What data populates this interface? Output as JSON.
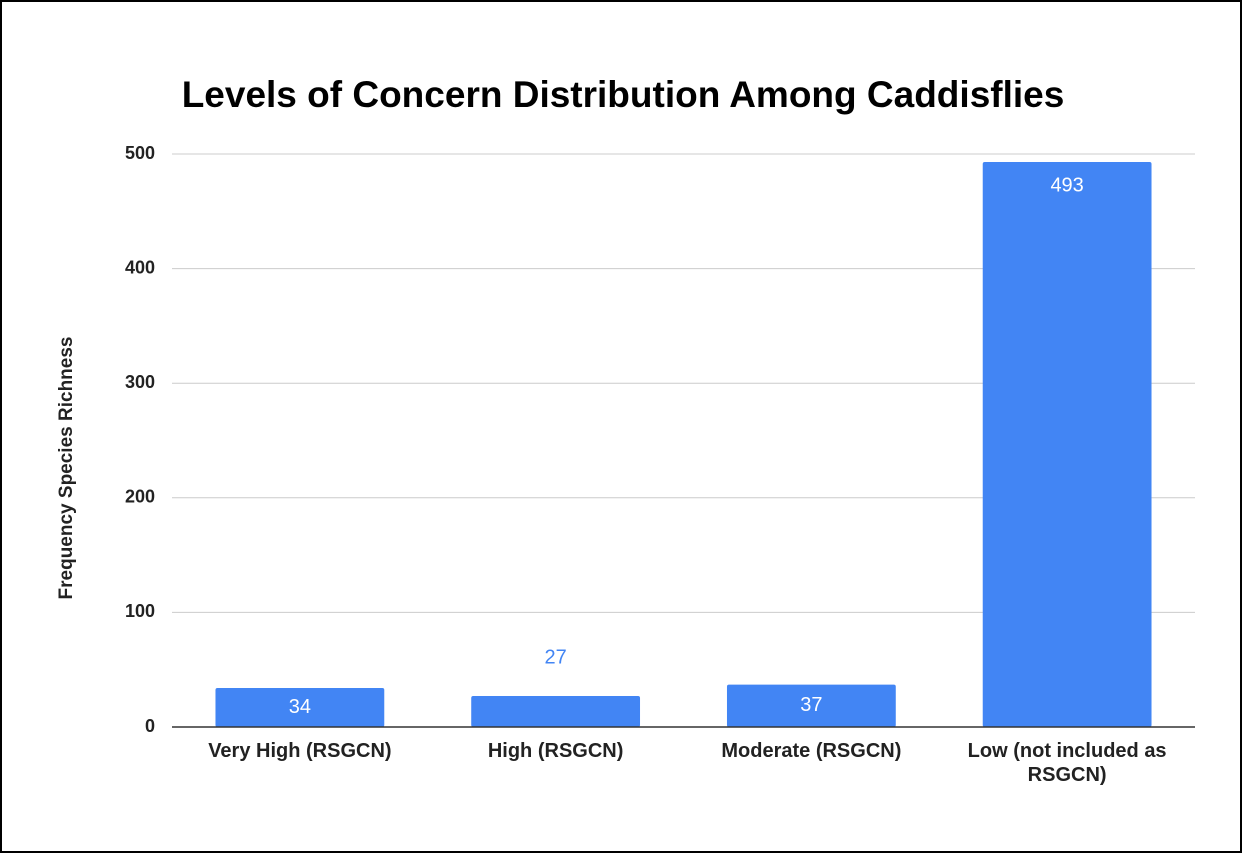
{
  "chart_data": {
    "type": "bar",
    "title": "Levels of Concern Distribution Among Caddisflies",
    "y_label": "Frequency Species Richness",
    "categories": [
      "Very High (RSGCN)",
      "High (RSGCN)",
      "Moderate (RSGCN)",
      "Low (not included as RSGCN)"
    ],
    "values": [
      34,
      27,
      37,
      493
    ],
    "color": "#4285f4",
    "ylim": [
      0,
      500
    ],
    "yticks": [
      0,
      100,
      200,
      300,
      400,
      500
    ],
    "grid": true
  }
}
